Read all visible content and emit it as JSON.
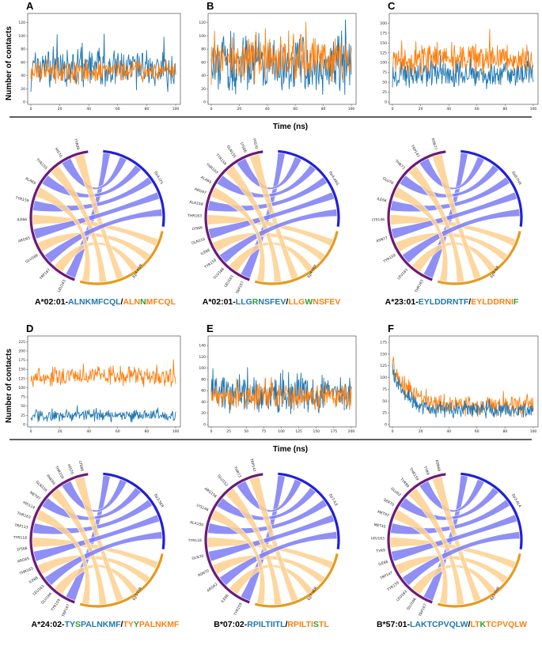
{
  "figure": {
    "ylabel": "Number of contacts",
    "xlabel": "Time (ns)",
    "colors": {
      "blue": "#1f77b4",
      "orange": "#ff7f0e",
      "green": "#2ca02c",
      "chord_blue": "#7b7bf5",
      "chord_orange": "#fdd08e",
      "arc_blue": "#2020d8",
      "arc_orange": "#e69a1f",
      "arc_purple": "#6b1a78"
    },
    "rows": [
      {
        "panels": [
          {
            "label": "A",
            "ymax": 128,
            "yticks": [
              0,
              20,
              40,
              60,
              80,
              100,
              120
            ],
            "xticks": [
              0,
              20,
              40,
              60,
              80,
              100
            ],
            "chart_data": {
              "type": "line",
              "x_range": [
                0,
                100
              ],
              "series": [
                {
                  "name": "blue",
                  "mean": 50,
                  "spread": 28,
                  "early": 0
                },
                {
                  "name": "orange",
                  "mean": 46,
                  "spread": 16,
                  "early": 0
                }
              ]
            }
          },
          {
            "label": "B",
            "ymax": 128,
            "yticks": [
              0,
              20,
              40,
              60,
              80,
              100,
              120
            ],
            "xticks": [
              0,
              20,
              40,
              60,
              80,
              100
            ],
            "chart_data": {
              "type": "line",
              "x_range": [
                0,
                100
              ],
              "series": [
                {
                  "name": "blue",
                  "mean": 55,
                  "spread": 40,
                  "early": 0
                },
                {
                  "name": "orange",
                  "mean": 65,
                  "spread": 32,
                  "early": 0
                }
              ]
            }
          },
          {
            "label": "C",
            "ymax": 215,
            "yticks": [
              0,
              25,
              50,
              75,
              100,
              125,
              150,
              175,
              200
            ],
            "xticks": [
              0,
              20,
              40,
              60,
              80,
              100
            ],
            "chart_data": {
              "type": "line",
              "x_range": [
                0,
                100
              ],
              "series": [
                {
                  "name": "blue",
                  "mean": 70,
                  "spread": 30,
                  "early": 0
                },
                {
                  "name": "orange",
                  "mean": 110,
                  "spread": 35,
                  "early": 0
                }
              ]
            }
          }
        ],
        "captions": [
          {
            "allele": "A*02:01-",
            "parts": [
              {
                "t": "ALNK",
                "c": "blue"
              },
              {
                "t": "M",
                "c": "blue"
              },
              {
                "t": "FCQL",
                "c": "blue"
              },
              {
                "t": "/",
                "c": "black"
              },
              {
                "t": "ALN",
                "c": "orange"
              },
              {
                "t": "N",
                "c": "green"
              },
              {
                "t": "MFCQL",
                "c": "orange"
              }
            ]
          },
          {
            "allele": "A*02:01-",
            "parts": [
              {
                "t": "LLG",
                "c": "blue"
              },
              {
                "t": "R",
                "c": "green"
              },
              {
                "t": "NSFEV",
                "c": "blue"
              },
              {
                "t": "/",
                "c": "black"
              },
              {
                "t": "LLG",
                "c": "orange"
              },
              {
                "t": "W",
                "c": "green"
              },
              {
                "t": "NSFEV",
                "c": "orange"
              }
            ]
          },
          {
            "allele": "A*23:01-",
            "parts": [
              {
                "t": "EYLDDRNT",
                "c": "blue"
              },
              {
                "t": "F",
                "c": "blue"
              },
              {
                "t": "/",
                "c": "black"
              },
              {
                "t": "EYLDDRNI",
                "c": "orange"
              },
              {
                "t": "F",
                "c": "green"
              }
            ]
          }
        ]
      },
      {
        "panels": [
          {
            "label": "D",
            "ymax": 230,
            "yticks": [
              0,
              25,
              50,
              75,
              100,
              125,
              150,
              175,
              200,
              225
            ],
            "xticks": [
              0,
              20,
              40,
              60,
              80,
              100
            ],
            "chart_data": {
              "type": "line",
              "x_range": [
                0,
                100
              ],
              "series": [
                {
                  "name": "orange",
                  "mean": 130,
                  "spread": 25,
                  "early": 0
                },
                {
                  "name": "blue",
                  "mean": 25,
                  "spread": 15,
                  "early": 0
                }
              ]
            }
          },
          {
            "label": "E",
            "ymax": 150,
            "yticks": [
              0,
              20,
              40,
              60,
              80,
              100,
              120,
              140
            ],
            "xticks": [
              0,
              25,
              50,
              75,
              100,
              125,
              150,
              175,
              200
            ],
            "chart_data": {
              "type": "line",
              "x_range": [
                0,
                200
              ],
              "series": [
                {
                  "name": "blue",
                  "mean": 55,
                  "spread": 30,
                  "early": 0
                },
                {
                  "name": "orange",
                  "mean": 50,
                  "spread": 20,
                  "early": 0
                }
              ]
            }
          },
          {
            "label": "F",
            "ymax": 180,
            "yticks": [
              0,
              25,
              50,
              75,
              100,
              125,
              150,
              175
            ],
            "xticks": [
              0,
              20,
              40,
              60,
              80,
              100
            ],
            "chart_data": {
              "type": "line",
              "x_range": [
                0,
                100
              ],
              "series": [
                {
                  "name": "orange",
                  "mean": 40,
                  "spread": 20,
                  "early": 100
                },
                {
                  "name": "blue",
                  "mean": 30,
                  "spread": 15,
                  "early": 80
                }
              ]
            }
          }
        ],
        "captions": [
          {
            "allele": "A*24:02-",
            "parts": [
              {
                "t": "TY",
                "c": "blue"
              },
              {
                "t": "S",
                "c": "green"
              },
              {
                "t": "PALNKMF",
                "c": "blue"
              },
              {
                "t": "/",
                "c": "black"
              },
              {
                "t": "TY",
                "c": "orange"
              },
              {
                "t": "Y",
                "c": "green"
              },
              {
                "t": "PALNKMF",
                "c": "orange"
              }
            ]
          },
          {
            "allele": "B*07:02-",
            "parts": [
              {
                "t": "RPILTIITL",
                "c": "blue"
              },
              {
                "t": "/",
                "c": "black"
              },
              {
                "t": "RPILTI",
                "c": "orange"
              },
              {
                "t": "S",
                "c": "green"
              },
              {
                "t": "TL",
                "c": "orange"
              }
            ]
          },
          {
            "allele": "B*57:01-",
            "parts": [
              {
                "t": "LA",
                "c": "blue"
              },
              {
                "t": "K",
                "c": "blue"
              },
              {
                "t": "TCPVQLW",
                "c": "blue"
              },
              {
                "t": "/",
                "c": "black"
              },
              {
                "t": "LT",
                "c": "orange"
              },
              {
                "t": "K",
                "c": "green"
              },
              {
                "t": "TCPVQLW",
                "c": "orange"
              }
            ]
          }
        ]
      }
    ],
    "chords": [
      {
        "a": "Ep4-LYS",
        "b": "Ep4-ASN",
        "residues": [
          "LEU163",
          "TRP167",
          "GLU166",
          "ARG65",
          "ILE66",
          "TYR159",
          "ALA69",
          "TYR159",
          "HIS70",
          "TYR99"
        ]
      },
      {
        "a": "Ep4-ARG",
        "b": "Ep4-TRP",
        "residues": [
          "TRP167",
          "LEU163",
          "GLU166",
          "TYR159",
          "ILE66",
          "GLN155",
          "LYS66",
          "THR163",
          "ALA158",
          "ARG97",
          "ALA69",
          "THR163",
          "TYR159",
          "GLN155",
          "LYS66",
          "HIS70"
        ]
      },
      {
        "a": "Ep8-THR",
        "b": "Ep8-ILE",
        "residues": [
          "THR163",
          "LEU163",
          "TYR159",
          "ASN77",
          "LYS146",
          "ILE66",
          "GLU76",
          "THR73",
          "TRP147",
          "ASN77"
        ]
      },
      {
        "a": "Ep3-SER",
        "b": "Ep3-TYR",
        "residues": [
          "TRP167",
          "TYR159",
          "GLU166",
          "LEU163",
          "ILE66",
          "THR163",
          "ARG65",
          "LYS66",
          "TYR118",
          "TRP133",
          "THR163",
          "HIS114",
          "MET97",
          "GLN156",
          "PHE99",
          "THR159",
          "HIS70",
          "LYS66"
        ]
      },
      {
        "a": "Ep7-ILE",
        "b": "Ep7-SER",
        "residues": [
          "TYR159",
          "ILE66",
          "ARG62",
          "ASN70",
          "GLN70",
          "TYR116",
          "ALA150",
          "LYS146",
          "ARG156",
          "GLU152",
          "THR73",
          "TRP147"
        ]
      },
      {
        "a": "Ep3-ALA",
        "b": "Ep3-THR",
        "residues": [
          "TRP167",
          "GLU166",
          "LEU163",
          "TYR159",
          "TRP147",
          "ILE66",
          "TYR9",
          "LEU163",
          "MET45",
          "MET97",
          "SER70",
          "GLU63",
          "TYR99",
          "THR159",
          "TYR9",
          "ASN66"
        ]
      }
    ]
  }
}
